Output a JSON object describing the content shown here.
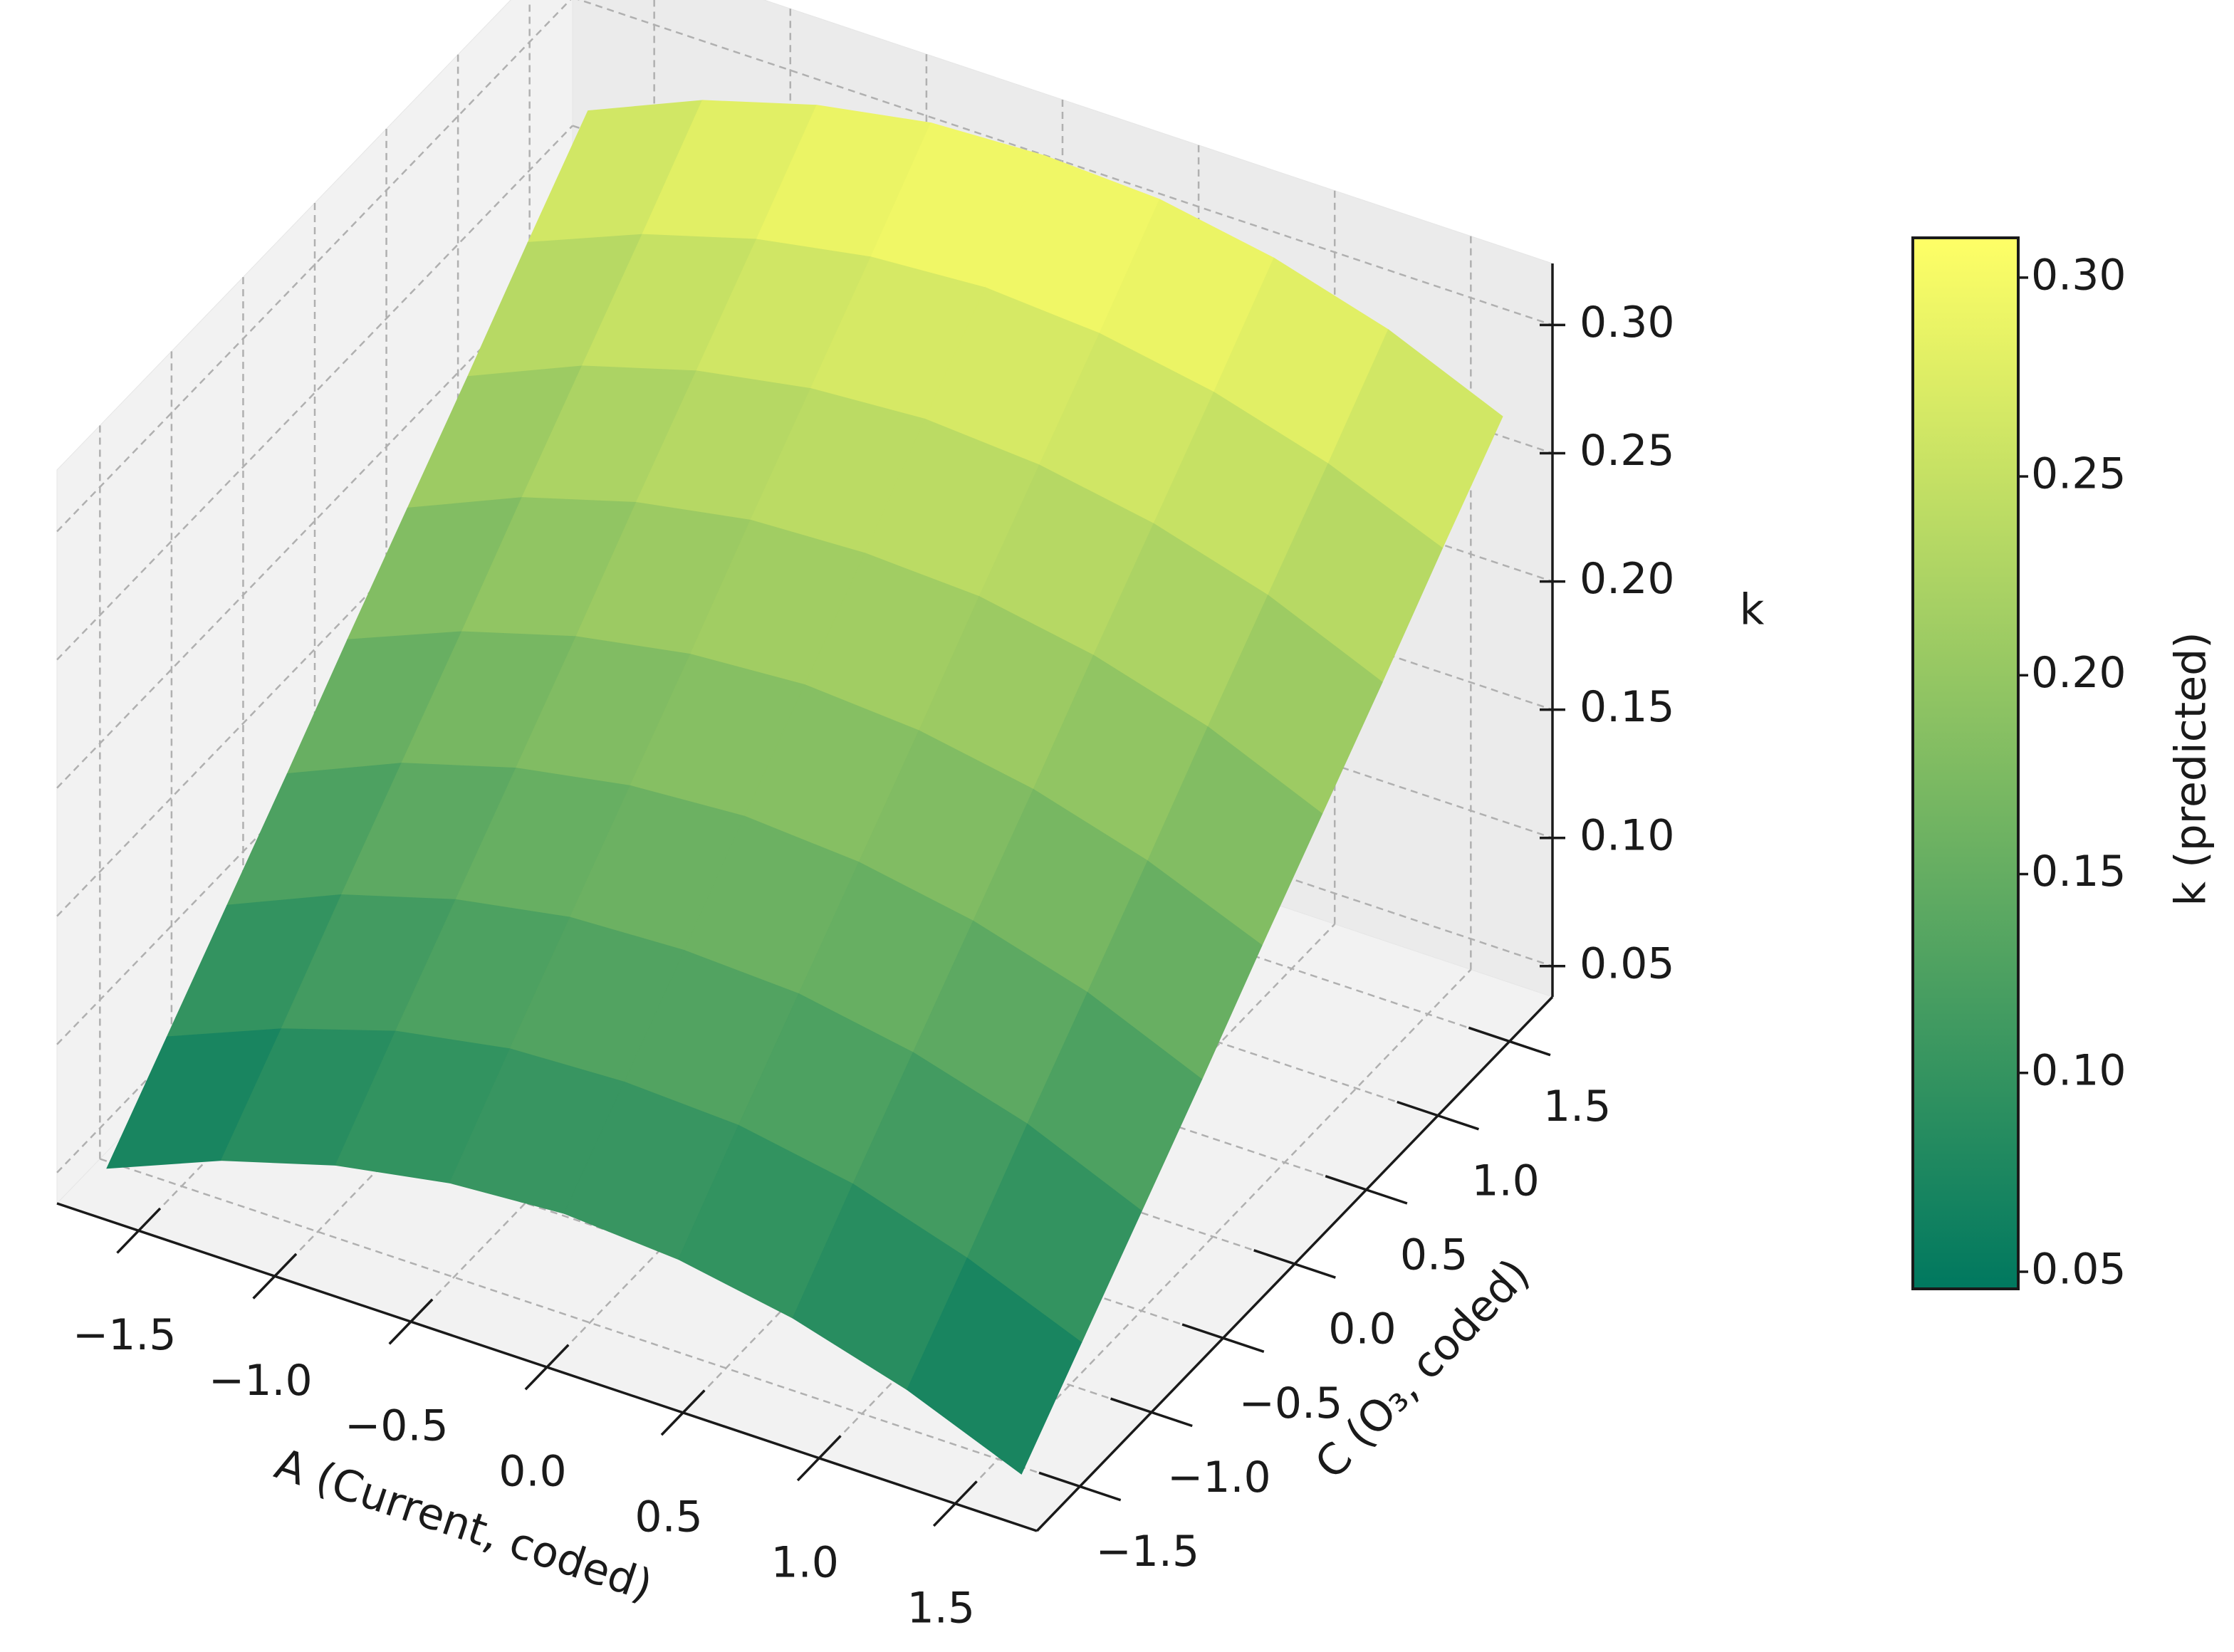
{
  "chart_data": {
    "type": "surface",
    "xlabel": "A (Current, coded)",
    "ylabel": "C (O₃, coded)",
    "zlabel": "k",
    "x": [
      -1.68,
      -1.26,
      -0.84,
      -0.42,
      0,
      0.42,
      0.84,
      1.26,
      1.68
    ],
    "y": [
      -1.68,
      -1.26,
      -0.84,
      -0.42,
      0,
      0.42,
      0.84,
      1.26,
      1.68
    ],
    "z": [
      [
        0.049,
        0.067,
        0.08,
        0.088,
        0.091,
        0.088,
        0.08,
        0.067,
        0.049
      ],
      [
        0.076,
        0.094,
        0.108,
        0.116,
        0.118,
        0.116,
        0.108,
        0.094,
        0.076
      ],
      [
        0.103,
        0.122,
        0.135,
        0.143,
        0.145,
        0.143,
        0.135,
        0.122,
        0.103
      ],
      [
        0.13,
        0.149,
        0.162,
        0.17,
        0.173,
        0.17,
        0.162,
        0.149,
        0.13
      ],
      [
        0.158,
        0.176,
        0.189,
        0.197,
        0.2,
        0.197,
        0.189,
        0.176,
        0.158
      ],
      [
        0.185,
        0.204,
        0.217,
        0.225,
        0.227,
        0.225,
        0.217,
        0.204,
        0.185
      ],
      [
        0.212,
        0.231,
        0.244,
        0.252,
        0.255,
        0.252,
        0.244,
        0.231,
        0.212
      ],
      [
        0.24,
        0.258,
        0.271,
        0.279,
        0.282,
        0.279,
        0.271,
        0.258,
        0.24
      ],
      [
        0.267,
        0.286,
        0.299,
        0.307,
        0.309,
        0.307,
        0.299,
        0.286,
        0.267
      ]
    ],
    "xlim": [
      -1.8,
      1.8
    ],
    "ylim": [
      -1.8,
      1.8
    ],
    "zlim": [
      0.038,
      0.324
    ],
    "xticks": [
      {
        "value": -1.5,
        "label": "−1.5"
      },
      {
        "value": -1.0,
        "label": "−1.0"
      },
      {
        "value": -0.5,
        "label": "−0.5"
      },
      {
        "value": 0,
        "label": "0.0"
      },
      0.5,
      {
        "value": 1.0,
        "label": "1.0"
      },
      1.5
    ],
    "yticks": [
      {
        "value": -1.5,
        "label": "−1.5"
      },
      {
        "value": -1.0,
        "label": "−1.0"
      },
      {
        "value": -0.5,
        "label": "−0.5"
      },
      {
        "value": 0,
        "label": "0.0"
      },
      0.5,
      {
        "value": 1.0,
        "label": "1.0"
      },
      1.5
    ],
    "zticks": [
      0.05,
      {
        "value": 0.1,
        "label": "0.10"
      },
      0.15,
      {
        "value": 0.2,
        "label": "0.20"
      },
      0.25,
      {
        "value": 0.3,
        "label": "0.30"
      }
    ],
    "grid": true,
    "colormap": [
      "#00785f",
      "#ffff66"
    ],
    "colorbar": {
      "label": "k (predicted)",
      "lim": [
        0.0457,
        0.31
      ],
      "ticks": [
        0.05,
        {
          "value": 0.1,
          "label": "0.10"
        },
        0.15,
        {
          "value": 0.2,
          "label": "0.20"
        },
        0.25,
        {
          "value": 0.3,
          "label": "0.30"
        }
      ]
    }
  }
}
